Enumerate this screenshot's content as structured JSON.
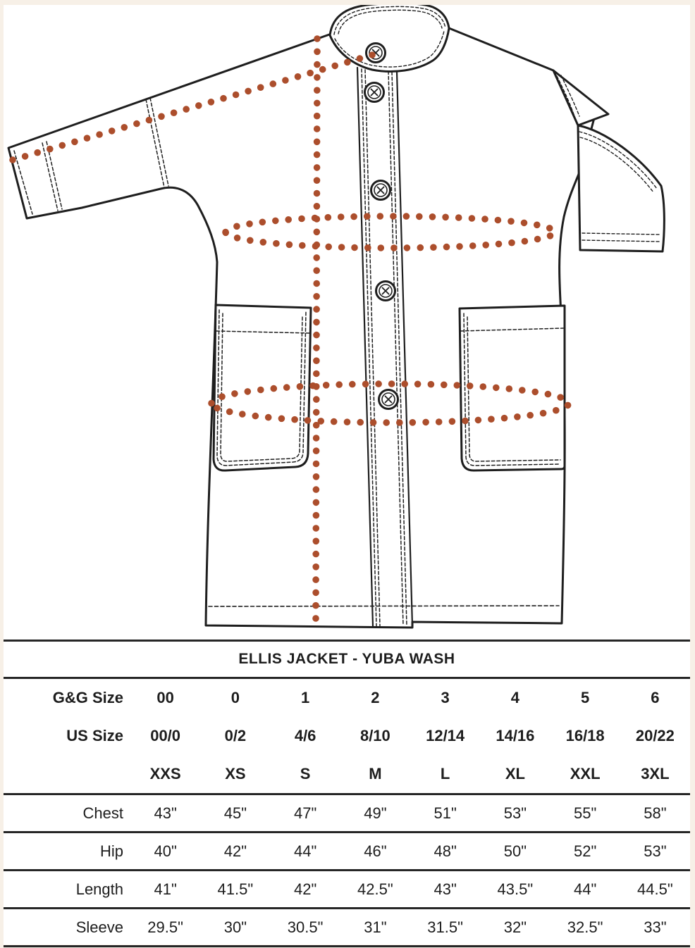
{
  "colors": {
    "accent": "#AC4E2C",
    "ink": "#1E1E1E",
    "rule": "#262626",
    "page_border": "#F7F0E7",
    "paper": "#FFFFFF"
  },
  "drawing": {
    "name": "jacket-technical-flat-sketch",
    "garment": "jacket with band collar, button placket, two patch pockets, drop-shoulder sleeves",
    "buttons_visible": 5,
    "measurement_guides": [
      {
        "id": "sleeve-guide",
        "shape": "dotted-diagonal-line",
        "meaning": "sleeve length from collar to cuff"
      },
      {
        "id": "length-guide",
        "shape": "dotted-vertical-line",
        "meaning": "garment length from shoulder to hem"
      },
      {
        "id": "chest-guide",
        "shape": "dotted-ellipse",
        "meaning": "chest circumference"
      },
      {
        "id": "hip-guide",
        "shape": "dotted-ellipse",
        "meaning": "hip circumference"
      }
    ]
  },
  "table": {
    "title": "ELLIS JACKET - YUBA WASH",
    "size_rows": [
      {
        "label": "G&G Size",
        "values": [
          "00",
          "0",
          "1",
          "2",
          "3",
          "4",
          "5",
          "6"
        ]
      },
      {
        "label": "US Size",
        "values": [
          "00/0",
          "0/2",
          "4/6",
          "8/10",
          "12/14",
          "14/16",
          "16/18",
          "20/22"
        ]
      },
      {
        "label": "",
        "values": [
          "XXS",
          "XS",
          "S",
          "M",
          "L",
          "XL",
          "XXL",
          "3XL"
        ]
      }
    ],
    "measurement_rows": [
      {
        "label": "Chest",
        "values": [
          "43\"",
          "45\"",
          "47\"",
          "49\"",
          "51\"",
          "53\"",
          "55\"",
          "58\""
        ]
      },
      {
        "label": "Hip",
        "values": [
          "40\"",
          "42\"",
          "44\"",
          "46\"",
          "48\"",
          "50\"",
          "52\"",
          "53\""
        ]
      },
      {
        "label": "Length",
        "values": [
          "41\"",
          "41.5\"",
          "42\"",
          "42.5\"",
          "43\"",
          "43.5\"",
          "44\"",
          "44.5\""
        ]
      },
      {
        "label": "Sleeve",
        "values": [
          "29.5\"",
          "30\"",
          "30.5\"",
          "31\"",
          "31.5\"",
          "32\"",
          "32.5\"",
          "33\""
        ]
      }
    ]
  },
  "chart_data": {
    "type": "table",
    "title": "ELLIS JACKET - YUBA WASH",
    "columns": [
      "00 / 00-0 / XXS",
      "0 / 0-2 / XS",
      "1 / 4-6 / S",
      "2 / 8-10 / M",
      "3 / 12-14 / L",
      "4 / 14-16 / XL",
      "5 / 16-18 / XXL",
      "6 / 20-22 / 3XL"
    ],
    "series": [
      {
        "name": "Chest (in)",
        "values": [
          43,
          45,
          47,
          49,
          51,
          53,
          55,
          58
        ]
      },
      {
        "name": "Hip (in)",
        "values": [
          40,
          42,
          44,
          46,
          48,
          50,
          52,
          53
        ]
      },
      {
        "name": "Length (in)",
        "values": [
          41,
          41.5,
          42,
          42.5,
          43,
          43.5,
          44,
          44.5
        ]
      },
      {
        "name": "Sleeve (in)",
        "values": [
          29.5,
          30,
          30.5,
          31,
          31.5,
          32,
          32.5,
          33
        ]
      }
    ]
  }
}
